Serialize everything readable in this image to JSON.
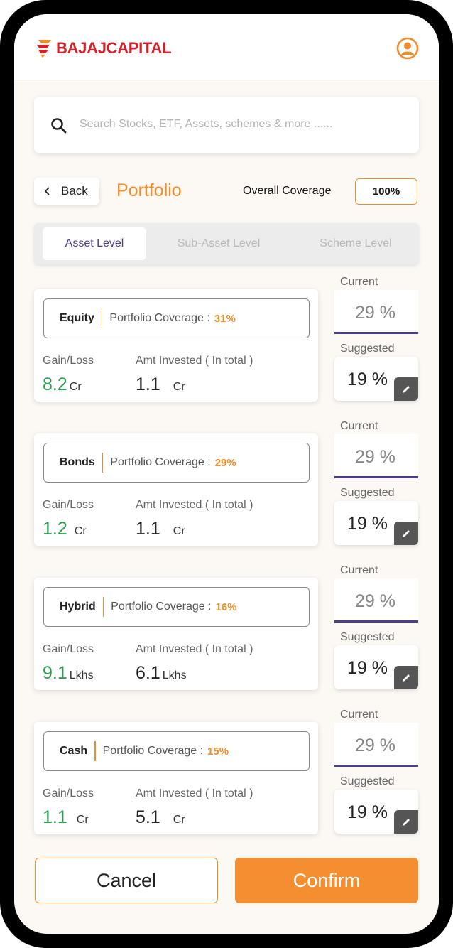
{
  "header": {
    "logo_text": "BAJAJCAPITAL",
    "profile_icon": "user-circle-icon"
  },
  "search": {
    "icon": "search-icon",
    "placeholder": "Search Stocks, ETF, Assets, schemes & more ......"
  },
  "title_row": {
    "back_label": "Back",
    "page_title": "Portfolio",
    "coverage_label": "Overall Coverage",
    "coverage_value": "100%"
  },
  "tabs": [
    {
      "label": "Asset Level",
      "active": true
    },
    {
      "label": "Sub-Asset Level",
      "active": false
    },
    {
      "label": "Scheme Level",
      "active": false
    }
  ],
  "labels": {
    "portfolio_coverage": "Portfolio Coverage :",
    "gain_loss": "Gain/Loss",
    "amt_invested": "Amt Invested ( In total )",
    "current": "Current",
    "suggested": "Suggested"
  },
  "assets": [
    {
      "name": "Equity",
      "coverage": "31%",
      "gain": "8.2",
      "gain_unit": "Cr",
      "amt": "1.1",
      "amt_unit": "Cr",
      "current": "29 %",
      "suggested": "19 %"
    },
    {
      "name": "Bonds",
      "coverage": "29%",
      "gain": "1.2",
      "gain_unit": "Cr",
      "amt": "1.1",
      "amt_unit": "Cr",
      "current": "29 %",
      "suggested": "19 %"
    },
    {
      "name": "Hybrid",
      "coverage": "16%",
      "gain": "9.1",
      "gain_unit": "Lkhs",
      "amt": "6.1",
      "amt_unit": "Lkhs",
      "current": "29 %",
      "suggested": "19 %"
    },
    {
      "name": "Cash",
      "coverage": "15%",
      "gain": "1.1",
      "gain_unit": "Cr",
      "amt": "5.1",
      "amt_unit": "Cr",
      "current": "29 %",
      "suggested": "19 %"
    }
  ],
  "buttons": {
    "cancel": "Cancel",
    "confirm": "Confirm"
  },
  "colors": {
    "accent": "#f28c28",
    "brand_red": "#d42027",
    "gain_green": "#2e9b4f",
    "active_tab": "#4b3d8f"
  }
}
